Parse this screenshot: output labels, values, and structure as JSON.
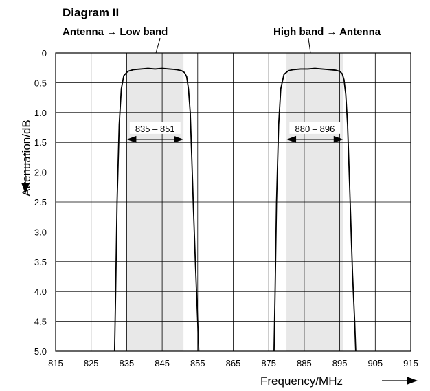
{
  "chart_data": {
    "type": "line",
    "title": "Diagram II",
    "annotations": [
      {
        "text": "Antenna → Low band",
        "band": "low"
      },
      {
        "text": "High band → Antenna",
        "band": "high"
      }
    ],
    "xlabel": "Frequency/MHz",
    "ylabel": "Attenuation/dB",
    "xlim": [
      815,
      915
    ],
    "ylim": [
      0,
      5.0
    ],
    "y_inverted": true,
    "grid": true,
    "xticks": [
      815,
      825,
      835,
      845,
      855,
      865,
      875,
      885,
      895,
      905,
      915
    ],
    "xtick_labels": [
      "815",
      "825",
      "835",
      "845",
      "855",
      "865",
      "875",
      "885",
      "895",
      "905",
      "915"
    ],
    "yticks": [
      0,
      0.5,
      1.0,
      1.5,
      2.0,
      2.5,
      3.0,
      3.5,
      4.0,
      4.5,
      5.0
    ],
    "ytick_labels": [
      "0",
      "0.5",
      "1.0",
      "1.5",
      "2.0",
      "2.5",
      "3.0",
      "3.5",
      "4.0",
      "4.5",
      "5.0"
    ],
    "passbands": [
      {
        "label": "835 – 851",
        "range": [
          835,
          851
        ],
        "arrow_y": 1.45
      },
      {
        "label": "880 – 896",
        "range": [
          880,
          896
        ],
        "arrow_y": 1.45
      }
    ],
    "shading_color": "#e8e8e8",
    "series": [
      {
        "band": "low",
        "x": [
          831.6,
          831.9,
          832.3,
          832.9,
          833.5,
          834.2,
          835.3,
          837.0,
          839.0,
          841.0,
          843.0,
          845.0,
          847.0,
          849.0,
          850.5,
          851.3,
          851.9,
          852.4,
          852.9,
          853.3,
          853.8,
          854.4,
          855.0,
          855.3
        ],
        "y": [
          5.0,
          4.0,
          2.5,
          1.2,
          0.6,
          0.38,
          0.31,
          0.28,
          0.27,
          0.26,
          0.27,
          0.26,
          0.27,
          0.28,
          0.3,
          0.33,
          0.4,
          0.6,
          1.0,
          1.7,
          2.6,
          3.6,
          4.5,
          5.0
        ]
      },
      {
        "band": "high",
        "x": [
          876.5,
          876.8,
          877.2,
          877.8,
          878.4,
          879.3,
          880.5,
          882.0,
          884.0,
          886.0,
          888.0,
          890.0,
          892.0,
          893.8,
          895.0,
          895.7,
          896.2,
          896.7,
          897.2,
          897.6,
          898.1,
          898.6,
          899.2,
          899.5
        ],
        "y": [
          5.0,
          4.0,
          2.5,
          1.2,
          0.6,
          0.36,
          0.3,
          0.28,
          0.27,
          0.27,
          0.26,
          0.27,
          0.28,
          0.29,
          0.31,
          0.35,
          0.45,
          0.7,
          1.2,
          1.9,
          2.8,
          3.7,
          4.5,
          5.0
        ]
      }
    ]
  }
}
